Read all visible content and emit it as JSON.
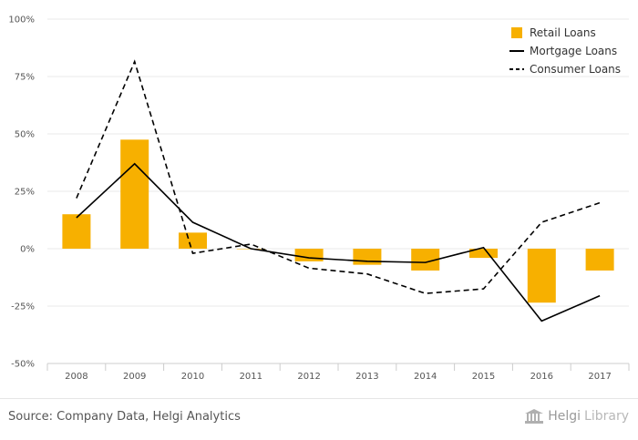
{
  "chart_data": {
    "type": "bar",
    "categories": [
      "2008",
      "2009",
      "2010",
      "2011",
      "2012",
      "2013",
      "2014",
      "2015",
      "2016",
      "2017"
    ],
    "series": [
      {
        "name": "Retail Loans",
        "kind": "bar",
        "color": "#f7b000",
        "values": [
          15,
          47.5,
          7,
          0,
          -5.5,
          -7,
          -9.5,
          -4,
          -23.5,
          -9.5
        ]
      },
      {
        "name": "Mortgage Loans",
        "kind": "line",
        "style": "solid",
        "color": "#000000",
        "values": [
          13.5,
          37,
          11.5,
          0,
          -4,
          -5.5,
          -6,
          0.5,
          -31.5,
          -20.5
        ]
      },
      {
        "name": "Consumer Loans",
        "kind": "line",
        "style": "dashed",
        "color": "#000000",
        "values": [
          22,
          81.5,
          -2,
          2,
          -8.5,
          -11,
          -19.5,
          -17.5,
          11.5,
          20
        ]
      }
    ],
    "yticks": [
      "100%",
      "75%",
      "50%",
      "25%",
      "0%",
      "-25%",
      "-50%"
    ],
    "ylim": [
      -50,
      100
    ],
    "grid": true,
    "legend_position": "top-right"
  },
  "source_text": "Source: Company Data, Helgi Analytics",
  "logo": {
    "name": "Helgi",
    "suffix": "Library"
  }
}
